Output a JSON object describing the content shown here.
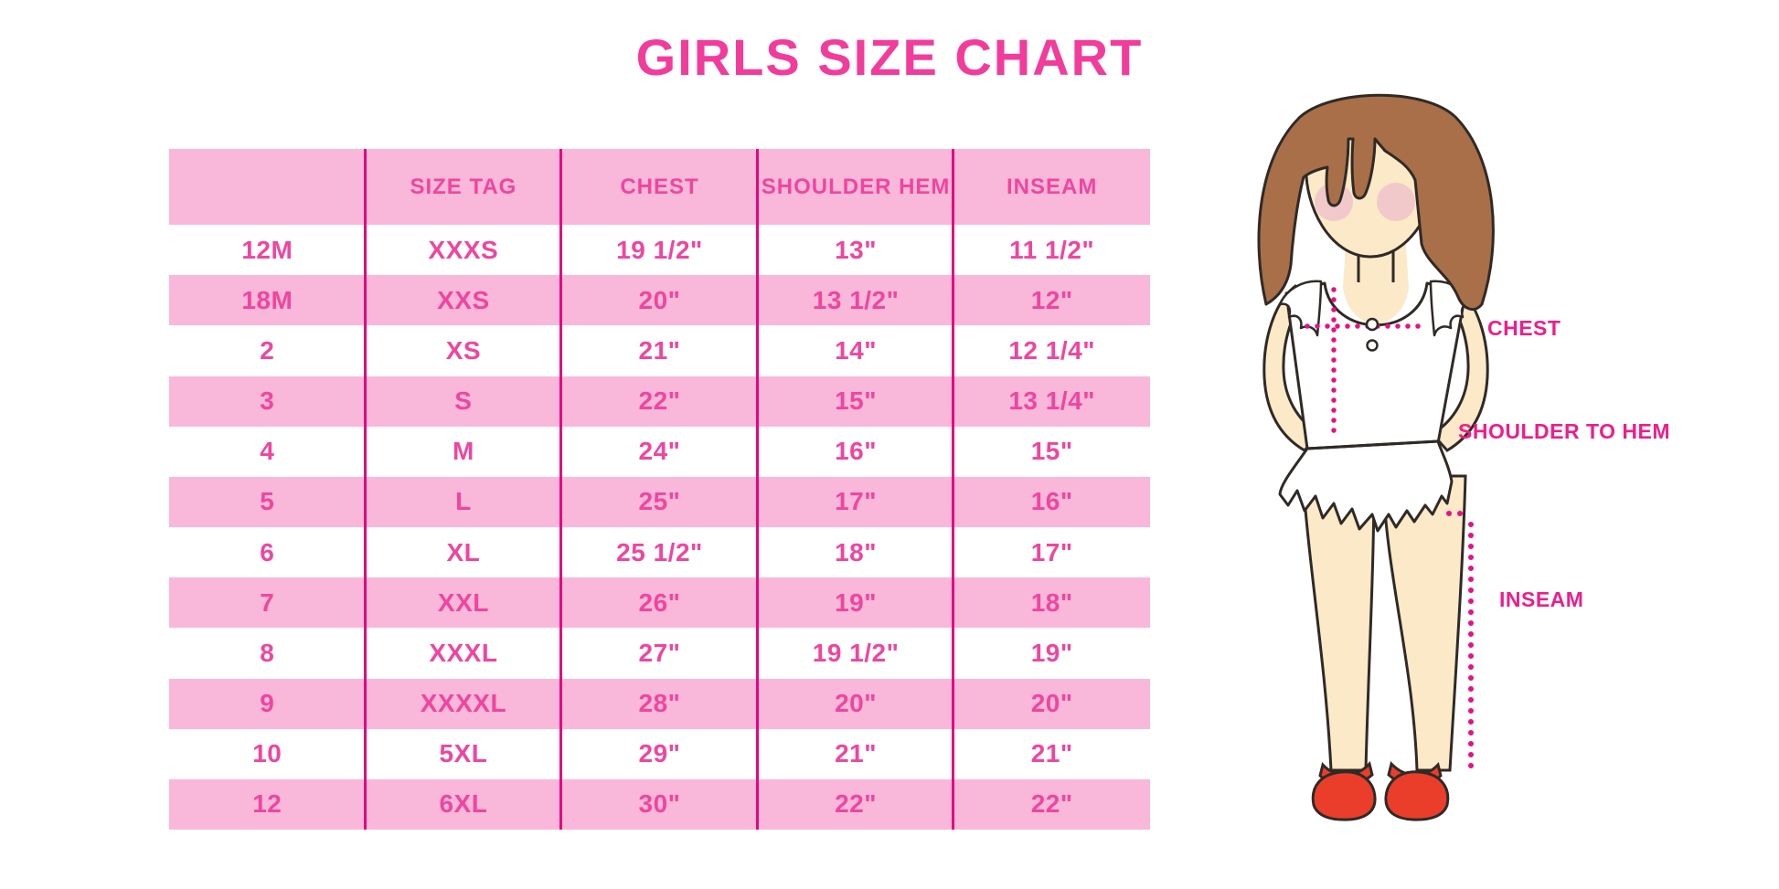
{
  "title": "GIRLS SIZE CHART",
  "chart_data": {
    "type": "table",
    "title": "GIRLS SIZE CHART",
    "columns": [
      "",
      "SIZE TAG",
      "CHEST",
      "SHOULDER HEM",
      "INSEAM"
    ],
    "rows": [
      [
        "12M",
        "XXXS",
        "19 1/2\"",
        "13\"",
        "11 1/2\""
      ],
      [
        "18M",
        "XXS",
        "20\"",
        "13 1/2\"",
        "12\""
      ],
      [
        "2",
        "XS",
        "21\"",
        "14\"",
        "12 1/4\""
      ],
      [
        "3",
        "S",
        "22\"",
        "15\"",
        "13 1/4\""
      ],
      [
        "4",
        "M",
        "24\"",
        "16\"",
        "15\""
      ],
      [
        "5",
        "L",
        "25\"",
        "17\"",
        "16\""
      ],
      [
        "6",
        "XL",
        "25 1/2\"",
        "18\"",
        "17\""
      ],
      [
        "7",
        "XXL",
        "26\"",
        "19\"",
        "18\""
      ],
      [
        "8",
        "XXXL",
        "27\"",
        "19 1/2\"",
        "19\""
      ],
      [
        "9",
        "XXXXL",
        "28\"",
        "20\"",
        "20\""
      ],
      [
        "10",
        "5XL",
        "29\"",
        "21\"",
        "21\""
      ],
      [
        "12",
        "6XL",
        "30\"",
        "22\"",
        "22\""
      ]
    ],
    "row_stripe_pattern": "white/pink alternating, header pink"
  },
  "figure": {
    "illustration": "girl-measurement-figure",
    "labels": {
      "chest": "CHEST",
      "shoulder_to_hem": "SHOULDER TO HEM",
      "inseam": "INSEAM"
    }
  },
  "colors": {
    "title_pink": "#F23C9C",
    "row_pink": "#F9B8D9",
    "cell_text_pink": "#F0459F",
    "divider_magenta": "#E5067F",
    "label_magenta": "#EC1E8C",
    "dotted_line_magenta": "#E81086",
    "hair_brown": "#A86F48",
    "skin": "#FBE9C8",
    "blush": "#EFC3CA",
    "shoe_red": "#EA3E2B",
    "outline": "#2F2A26"
  }
}
